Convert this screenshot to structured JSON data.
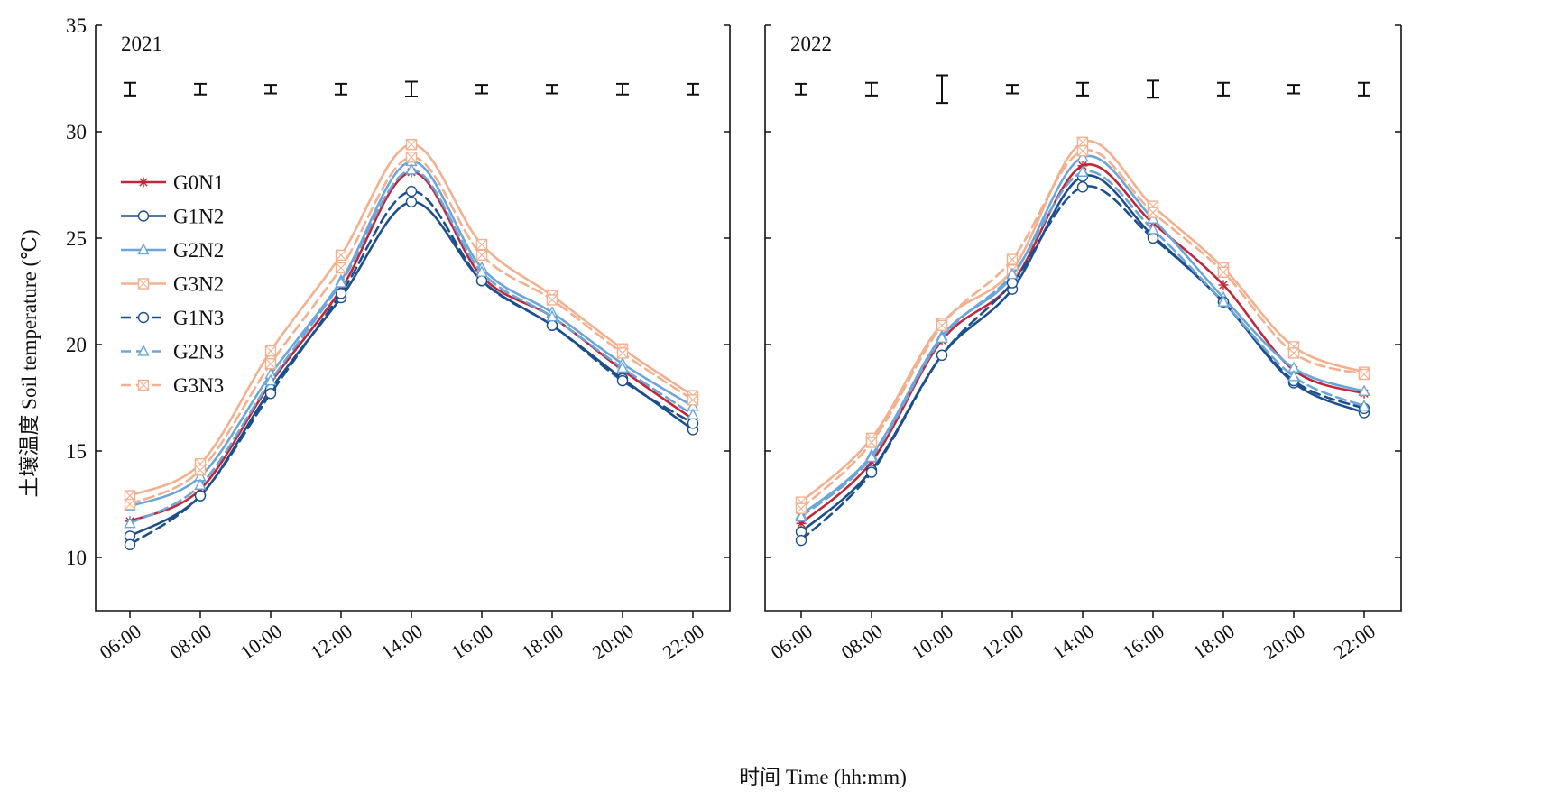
{
  "figure": {
    "y_axis_label": "土壤温度 Soil temperature (℃)",
    "x_axis_label": "时间 Time (hh:mm)"
  },
  "legend": {
    "placement": "upper-left of left panel",
    "entries": [
      {
        "label": "G0N1",
        "color": "#c0273a",
        "dash": "solid",
        "marker": "star"
      },
      {
        "label": "G1N2",
        "color": "#1c4f8c",
        "dash": "solid",
        "marker": "circle"
      },
      {
        "label": "G2N2",
        "color": "#6ca6d9",
        "dash": "solid",
        "marker": "triangle"
      },
      {
        "label": "G3N2",
        "color": "#f2b08f",
        "dash": "solid",
        "marker": "box-x"
      },
      {
        "label": "G1N3",
        "color": "#1c4f8c",
        "dash": "dashed",
        "marker": "circle"
      },
      {
        "label": "G2N3",
        "color": "#6ca6d9",
        "dash": "dashed",
        "marker": "triangle"
      },
      {
        "label": "G3N3",
        "color": "#f2b08f",
        "dash": "dashed",
        "marker": "box-x"
      }
    ]
  },
  "chart_data": [
    {
      "type": "line",
      "panel_label": "2021",
      "x": [
        "06:00",
        "08:00",
        "10:00",
        "12:00",
        "14:00",
        "16:00",
        "18:00",
        "20:00",
        "22:00"
      ],
      "ylim": [
        7.5,
        35
      ],
      "yticks": [
        10,
        15,
        20,
        25,
        30,
        35
      ],
      "grid": false,
      "series": [
        {
          "name": "G0N1",
          "values": [
            11.7,
            13.2,
            18.2,
            22.6,
            28.1,
            23.2,
            21.3,
            18.8,
            16.5
          ]
        },
        {
          "name": "G1N2",
          "values": [
            11.0,
            12.9,
            17.9,
            22.2,
            26.7,
            23.0,
            20.9,
            18.4,
            16.0
          ]
        },
        {
          "name": "G2N2",
          "values": [
            12.4,
            13.8,
            18.6,
            23.0,
            28.6,
            23.6,
            21.5,
            19.1,
            17.1
          ]
        },
        {
          "name": "G3N2",
          "values": [
            12.9,
            14.4,
            19.7,
            24.2,
            29.4,
            24.7,
            22.3,
            19.8,
            17.6
          ]
        },
        {
          "name": "G1N3",
          "values": [
            10.6,
            12.9,
            17.7,
            22.4,
            27.2,
            23.0,
            20.9,
            18.3,
            16.3
          ]
        },
        {
          "name": "G2N3",
          "values": [
            11.6,
            13.4,
            18.3,
            22.9,
            28.2,
            23.4,
            21.3,
            18.9,
            16.7
          ]
        },
        {
          "name": "G3N3",
          "values": [
            12.5,
            14.1,
            19.1,
            23.6,
            28.8,
            24.2,
            22.1,
            19.6,
            17.4
          ]
        }
      ],
      "error_bars": {
        "center": 32,
        "half_widths": [
          0.3,
          0.25,
          0.2,
          0.25,
          0.35,
          0.2,
          0.2,
          0.25,
          0.25
        ]
      }
    },
    {
      "type": "line",
      "panel_label": "2022",
      "x": [
        "06:00",
        "08:00",
        "10:00",
        "12:00",
        "14:00",
        "16:00",
        "18:00",
        "20:00",
        "22:00"
      ],
      "ylim": [
        7.5,
        35
      ],
      "yticks": [
        10,
        15,
        20,
        25,
        30,
        35
      ],
      "grid": false,
      "series": [
        {
          "name": "G0N1",
          "values": [
            11.6,
            14.5,
            20.2,
            22.9,
            28.4,
            25.7,
            22.8,
            18.8,
            17.7
          ]
        },
        {
          "name": "G1N2",
          "values": [
            11.2,
            14.1,
            19.5,
            22.6,
            27.9,
            25.1,
            22.0,
            18.2,
            16.8
          ]
        },
        {
          "name": "G2N2",
          "values": [
            12.0,
            14.8,
            20.4,
            23.2,
            28.8,
            25.9,
            22.2,
            18.9,
            17.8
          ]
        },
        {
          "name": "G3N2",
          "values": [
            12.6,
            15.6,
            21.0,
            23.5,
            29.5,
            26.5,
            23.6,
            19.9,
            18.7
          ]
        },
        {
          "name": "G1N3",
          "values": [
            10.8,
            14.0,
            19.5,
            22.9,
            27.4,
            25.0,
            22.0,
            18.3,
            17.0
          ]
        },
        {
          "name": "G2N3",
          "values": [
            11.9,
            14.7,
            20.3,
            23.3,
            28.1,
            25.4,
            22.0,
            18.5,
            17.1
          ]
        },
        {
          "name": "G3N3",
          "values": [
            12.3,
            15.4,
            20.9,
            24.0,
            29.1,
            26.2,
            23.4,
            19.6,
            18.6
          ]
        }
      ],
      "error_bars": {
        "center": 32,
        "half_widths": [
          0.25,
          0.3,
          0.65,
          0.2,
          0.3,
          0.4,
          0.3,
          0.2,
          0.3
        ]
      }
    }
  ]
}
